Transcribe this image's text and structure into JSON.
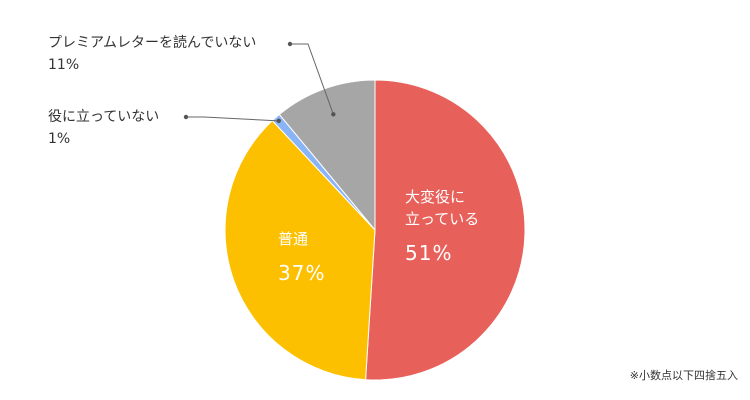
{
  "chart_data": {
    "type": "pie",
    "start_angle_deg": 0,
    "direction": "clockwise",
    "slices": [
      {
        "label": "大変役に立っている",
        "label_lines": [
          "大変役に",
          "立っている"
        ],
        "value": 51,
        "value_text": "51%",
        "color": "#E8605A",
        "label_position": "inside"
      },
      {
        "label": "普通",
        "label_lines": [
          "普通"
        ],
        "value": 37,
        "value_text": "37%",
        "color": "#FDC000",
        "label_position": "inside"
      },
      {
        "label": "役に立っていない",
        "label_lines": [
          "役に立っていない"
        ],
        "value": 1,
        "value_text": "1%",
        "color": "#8AB4F8",
        "label_position": "outside"
      },
      {
        "label": "プレミアムレターを読んでいない",
        "label_lines": [
          "プレミアムレターを読んでいない"
        ],
        "value": 11,
        "value_text": "11%",
        "color": "#A6A6A6",
        "label_position": "outside"
      }
    ],
    "footnote": "※小数点以下四捨五入"
  }
}
